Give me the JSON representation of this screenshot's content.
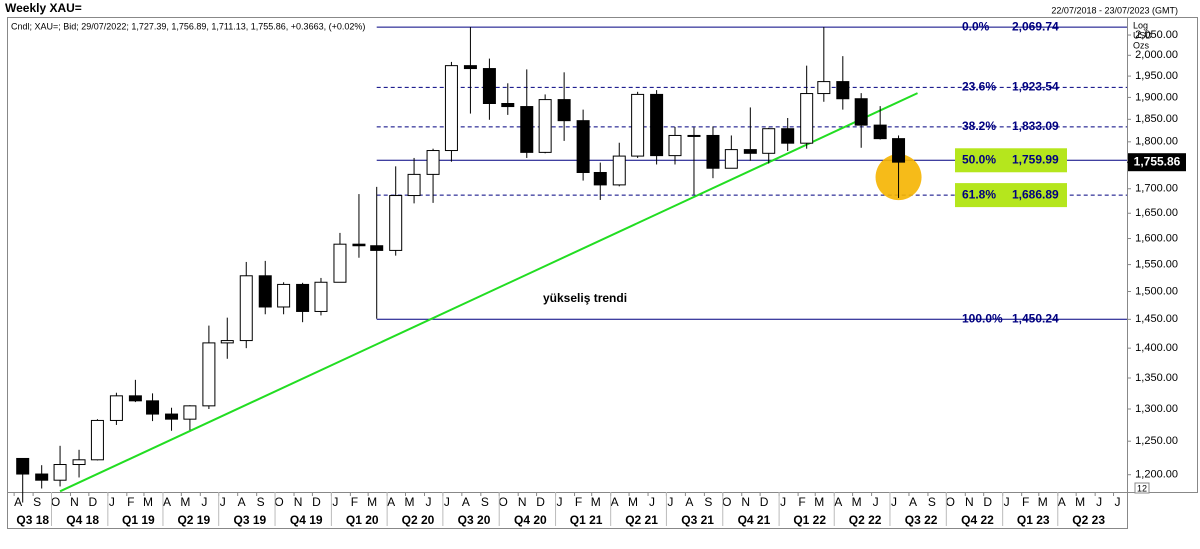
{
  "chart_data": {
    "type": "candlestick",
    "title": "Weekly XAU=",
    "date_range": "22/07/2018 - 23/07/2023 (GMT)",
    "info": "Cndl; XAU=; Bid; 29/07/2022; 1,727.39, 1,756.89, 1,711.13, 1,755.86, +0.3663, (+0.02%)",
    "scale_labels": [
      "Log",
      "USD",
      "Ozs"
    ],
    "log_scale": true,
    "corner_label": "12",
    "xlim": [
      "22/07/2018",
      "23/07/2023"
    ],
    "ylim": [
      1175,
      2093
    ],
    "yticks": [
      {
        "value": 1200,
        "label": "1,200.00"
      },
      {
        "value": 1250,
        "label": "1,250.00"
      },
      {
        "value": 1300,
        "label": "1,300.00"
      },
      {
        "value": 1350,
        "label": "1,350.00"
      },
      {
        "value": 1400,
        "label": "1,400.00"
      },
      {
        "value": 1450,
        "label": "1,450.00"
      },
      {
        "value": 1500,
        "label": "1,500.00"
      },
      {
        "value": 1550,
        "label": "1,550.00"
      },
      {
        "value": 1600,
        "label": "1,600.00"
      },
      {
        "value": 1650,
        "label": "1,650.00"
      },
      {
        "value": 1700,
        "label": "1,700.00"
      },
      {
        "value": 1750,
        "label": "1,750.00"
      },
      {
        "value": 1800,
        "label": "1,800.00"
      },
      {
        "value": 1850,
        "label": "1,850.00"
      },
      {
        "value": 1900,
        "label": "1,900.00"
      },
      {
        "value": 1950,
        "label": "1,950.00"
      },
      {
        "value": 2000,
        "label": "2,000.00"
      },
      {
        "value": 2050,
        "label": "2,050.00"
      }
    ],
    "xticks": [
      {
        "value": "2018-08",
        "label": "A"
      },
      {
        "value": "2018-09",
        "label": "S"
      },
      {
        "value": "2018-10",
        "label": "O"
      },
      {
        "value": "2018-11",
        "label": "N"
      },
      {
        "value": "2018-12",
        "label": "D"
      },
      {
        "value": "2019-01",
        "label": "J"
      },
      {
        "value": "2019-02",
        "label": "F"
      },
      {
        "value": "2019-03",
        "label": "M"
      },
      {
        "value": "2019-04",
        "label": "A"
      },
      {
        "value": "2019-05",
        "label": "M"
      },
      {
        "value": "2019-06",
        "label": "J"
      },
      {
        "value": "2019-07",
        "label": "J"
      },
      {
        "value": "2019-08",
        "label": "A"
      },
      {
        "value": "2019-09",
        "label": "S"
      },
      {
        "value": "2019-10",
        "label": "O"
      },
      {
        "value": "2019-11",
        "label": "N"
      },
      {
        "value": "2019-12",
        "label": "D"
      },
      {
        "value": "2020-01",
        "label": "J"
      },
      {
        "value": "2020-02",
        "label": "F"
      },
      {
        "value": "2020-03",
        "label": "M"
      },
      {
        "value": "2020-04",
        "label": "A"
      },
      {
        "value": "2020-05",
        "label": "M"
      },
      {
        "value": "2020-06",
        "label": "J"
      },
      {
        "value": "2020-07",
        "label": "J"
      },
      {
        "value": "2020-08",
        "label": "A"
      },
      {
        "value": "2020-09",
        "label": "S"
      },
      {
        "value": "2020-10",
        "label": "O"
      },
      {
        "value": "2020-11",
        "label": "N"
      },
      {
        "value": "2020-12",
        "label": "D"
      },
      {
        "value": "2021-01",
        "label": "J"
      },
      {
        "value": "2021-02",
        "label": "F"
      },
      {
        "value": "2021-03",
        "label": "M"
      },
      {
        "value": "2021-04",
        "label": "A"
      },
      {
        "value": "2021-05",
        "label": "M"
      },
      {
        "value": "2021-06",
        "label": "J"
      },
      {
        "value": "2021-07",
        "label": "J"
      },
      {
        "value": "2021-08",
        "label": "A"
      },
      {
        "value": "2021-09",
        "label": "S"
      },
      {
        "value": "2021-10",
        "label": "O"
      },
      {
        "value": "2021-11",
        "label": "N"
      },
      {
        "value": "2021-12",
        "label": "D"
      },
      {
        "value": "2022-01",
        "label": "J"
      },
      {
        "value": "2022-02",
        "label": "F"
      },
      {
        "value": "2022-03",
        "label": "M"
      },
      {
        "value": "2022-04",
        "label": "A"
      },
      {
        "value": "2022-05",
        "label": "M"
      },
      {
        "value": "2022-06",
        "label": "J"
      },
      {
        "value": "2022-07",
        "label": "J"
      },
      {
        "value": "2022-08",
        "label": "A"
      },
      {
        "value": "2022-09",
        "label": "S"
      },
      {
        "value": "2022-10",
        "label": "O"
      },
      {
        "value": "2022-11",
        "label": "N"
      },
      {
        "value": "2022-12",
        "label": "D"
      },
      {
        "value": "2023-01",
        "label": "J"
      },
      {
        "value": "2023-02",
        "label": "F"
      },
      {
        "value": "2023-03",
        "label": "M"
      },
      {
        "value": "2023-04",
        "label": "A"
      },
      {
        "value": "2023-05",
        "label": "M"
      },
      {
        "value": "2023-06",
        "label": "J"
      },
      {
        "value": "2023-07",
        "label": "J"
      }
    ],
    "quarters": [
      {
        "value": "2018-07",
        "label": "Q3 18"
      },
      {
        "value": "2018-10",
        "label": "Q4 18"
      },
      {
        "value": "2019-01",
        "label": "Q1 19"
      },
      {
        "value": "2019-04",
        "label": "Q2 19"
      },
      {
        "value": "2019-07",
        "label": "Q3 19"
      },
      {
        "value": "2019-10",
        "label": "Q4 19"
      },
      {
        "value": "2020-01",
        "label": "Q1 20"
      },
      {
        "value": "2020-04",
        "label": "Q2 20"
      },
      {
        "value": "2020-07",
        "label": "Q3 20"
      },
      {
        "value": "2020-10",
        "label": "Q4 20"
      },
      {
        "value": "2021-01",
        "label": "Q1 21"
      },
      {
        "value": "2021-04",
        "label": "Q2 21"
      },
      {
        "value": "2021-07",
        "label": "Q3 21"
      },
      {
        "value": "2021-10",
        "label": "Q4 21"
      },
      {
        "value": "2022-01",
        "label": "Q1 22"
      },
      {
        "value": "2022-04",
        "label": "Q2 22"
      },
      {
        "value": "2022-07",
        "label": "Q3 22"
      },
      {
        "value": "2022-10",
        "label": "Q4 22"
      },
      {
        "value": "2023-01",
        "label": "Q1 23"
      },
      {
        "value": "2023-04",
        "label": "Q2 23"
      }
    ],
    "x": [
      "2018-08",
      "2018-09",
      "2018-10",
      "2018-11",
      "2018-12",
      "2019-01",
      "2019-02",
      "2019-03",
      "2019-04",
      "2019-05",
      "2019-06",
      "2019-07",
      "2019-08",
      "2019-09",
      "2019-10",
      "2019-11",
      "2019-12",
      "2020-01",
      "2020-02",
      "2020-03",
      "2020-04",
      "2020-05",
      "2020-06",
      "2020-07",
      "2020-08",
      "2020-09",
      "2020-10",
      "2020-11",
      "2020-12",
      "2021-01",
      "2021-02",
      "2021-03",
      "2021-04",
      "2021-05",
      "2021-06",
      "2021-07",
      "2021-08",
      "2021-09",
      "2021-10",
      "2021-11",
      "2021-12",
      "2022-01",
      "2022-02",
      "2022-03",
      "2022-04",
      "2022-05",
      "2022-06",
      "2022-07"
    ],
    "open": [
      1224,
      1201,
      1192,
      1215,
      1222,
      1282,
      1321,
      1313,
      1292,
      1284,
      1305,
      1409,
      1413,
      1529,
      1472,
      1513,
      1464,
      1517,
      1589,
      1586,
      1577,
      1686,
      1730,
      1781,
      1975,
      1968,
      1886,
      1879,
      1777,
      1895,
      1847,
      1734,
      1708,
      1769,
      1907,
      1770,
      1814,
      1814,
      1743,
      1783,
      1775,
      1829,
      1797,
      1909,
      1937,
      1897,
      1837,
      1807
    ],
    "high": [
      1224,
      1214,
      1243,
      1237,
      1284,
      1326,
      1347,
      1325,
      1302,
      1306,
      1439,
      1453,
      1555,
      1557,
      1517,
      1516,
      1525,
      1611,
      1689,
      1704,
      1747,
      1765,
      1785,
      1984,
      2070,
      1992,
      1933,
      1966,
      1907,
      1959,
      1872,
      1755,
      1798,
      1913,
      1917,
      1833,
      1832,
      1834,
      1814,
      1877,
      1831,
      1853,
      1975,
      2070,
      1998,
      1910,
      1880,
      1814
    ],
    "low": [
      1160,
      1180,
      1183,
      1196,
      1221,
      1275,
      1311,
      1281,
      1266,
      1267,
      1300,
      1382,
      1400,
      1459,
      1459,
      1445,
      1457,
      1517,
      1563,
      1451,
      1567,
      1670,
      1671,
      1757,
      1863,
      1849,
      1860,
      1765,
      1775,
      1802,
      1717,
      1677,
      1705,
      1765,
      1751,
      1751,
      1688,
      1722,
      1746,
      1759,
      1753,
      1780,
      1785,
      1890,
      1872,
      1787,
      1805,
      1681
    ],
    "close": [
      1201,
      1192,
      1215,
      1222,
      1282,
      1321,
      1313,
      1292,
      1284,
      1305,
      1409,
      1413,
      1529,
      1472,
      1513,
      1464,
      1517,
      1589,
      1586,
      1577,
      1686,
      1730,
      1781,
      1975,
      1968,
      1886,
      1879,
      1777,
      1895,
      1847,
      1734,
      1708,
      1769,
      1907,
      1770,
      1814,
      1814,
      1743,
      1783,
      1775,
      1829,
      1797,
      1909,
      1937,
      1897,
      1837,
      1807,
      1756
    ],
    "last_price": {
      "value": 1755.86,
      "label": "1,755.86"
    },
    "fibonacci": {
      "start": "2020-03",
      "ratio_labels": [
        "0.0%",
        "23.6%",
        "38.2%",
        "50.0%",
        "61.8%",
        "100.0%"
      ],
      "values": [
        2069.74,
        1923.54,
        1833.09,
        1759.99,
        1686.89,
        1450.24
      ],
      "value_labels": [
        "2,069.74",
        "1,923.54",
        "1,833.09",
        "1,759.99",
        "1,686.89",
        "1,450.24"
      ],
      "styles": [
        "solid",
        "dashed",
        "dashed",
        "solid",
        "dashed",
        "solid"
      ],
      "highlighted": [
        false,
        false,
        false,
        true,
        true,
        false
      ],
      "color": "#000080",
      "highlight_color": "#b5e61d"
    },
    "trendline": {
      "x": [
        "2018-10",
        "2022-08"
      ],
      "values": [
        1176,
        1910
      ],
      "color": "#22dd22",
      "label": "yükseliş trendi"
    }
  }
}
